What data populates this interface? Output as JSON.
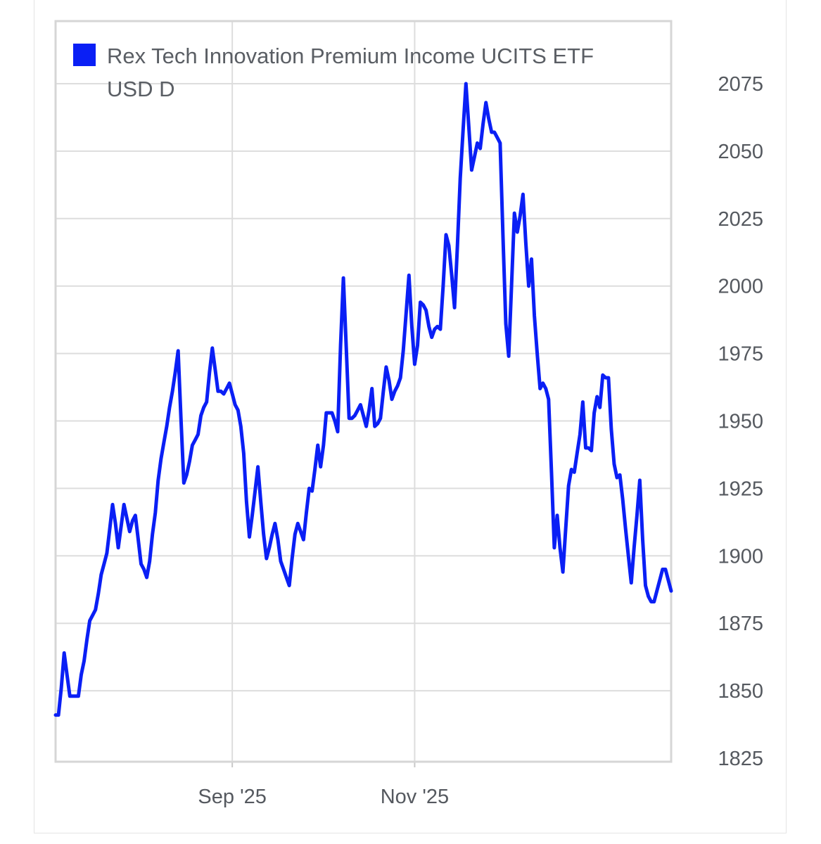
{
  "chart_data": {
    "type": "line",
    "title": "",
    "xlabel": "",
    "ylabel": "",
    "ylim": [
      1825,
      2075
    ],
    "y_ticks": [
      1825,
      1850,
      1875,
      1900,
      1925,
      1950,
      1975,
      2000,
      2025,
      2050,
      2075
    ],
    "x_ticks": [
      {
        "label": "Sep '25",
        "index": 62
      },
      {
        "label": "Nov '25",
        "index": 126
      }
    ],
    "grid": true,
    "legend_position": "top-left",
    "legend_lines": [
      "Rex Tech Innovation Premium Income UCITS ETF",
      "USD D"
    ],
    "series": [
      {
        "name": "Rex Tech Innovation Premium Income UCITS ETF USD D",
        "color": "#0a1ff5",
        "values": [
          1841,
          1841,
          1851,
          1864,
          1856,
          1848,
          1848,
          1848,
          1848,
          1856,
          1861,
          1869,
          1876,
          1878,
          1880,
          1886,
          1893,
          1897,
          1901,
          1910,
          1919,
          1912,
          1903,
          1911,
          1919,
          1914,
          1909,
          1913,
          1915,
          1906,
          1897,
          1895,
          1892,
          1898,
          1908,
          1916,
          1928,
          1936,
          1942,
          1948,
          1955,
          1961,
          1968,
          1976,
          1951,
          1927,
          1930,
          1935,
          1941,
          1943,
          1945,
          1952,
          1955,
          1957,
          1968,
          1977,
          1969,
          1961,
          1961,
          1960,
          1962,
          1964,
          1960,
          1956,
          1954,
          1948,
          1938,
          1920,
          1907,
          1915,
          1924,
          1933,
          1920,
          1908,
          1899,
          1903,
          1908,
          1912,
          1906,
          1898,
          1895,
          1892,
          1889,
          1899,
          1908,
          1912,
          1909,
          1906,
          1916,
          1925,
          1924,
          1932,
          1941,
          1933,
          1941,
          1953,
          1953,
          1953,
          1950,
          1946,
          1978,
          2003,
          1977,
          1951,
          1951,
          1952,
          1954,
          1956,
          1952,
          1948,
          1954,
          1962,
          1948,
          1949,
          1951,
          1961,
          1970,
          1965,
          1958,
          1961,
          1963,
          1966,
          1976,
          1990,
          2004,
          1985,
          1971,
          1978,
          1994,
          1993,
          1991,
          1985,
          1981,
          1984,
          1985,
          1984,
          2000,
          2019,
          2015,
          2004,
          1992,
          2015,
          2040,
          2058,
          2075,
          2059,
          2043,
          2048,
          2053,
          2051,
          2060,
          2068,
          2062,
          2057,
          2057,
          2055,
          2053,
          2018,
          1986,
          1974,
          2000,
          2027,
          2020,
          2026,
          2034,
          2016,
          2000,
          2010,
          1989,
          1975,
          1962,
          1964,
          1962,
          1958,
          1931,
          1903,
          1915,
          1903,
          1894,
          1910,
          1926,
          1932,
          1931,
          1938,
          1945,
          1957,
          1940,
          1940,
          1939,
          1953,
          1959,
          1955,
          1967,
          1966,
          1966,
          1947,
          1934,
          1929,
          1930,
          1921,
          1910,
          1900,
          1890,
          1903,
          1915,
          1928,
          1906,
          1889,
          1885,
          1883,
          1883,
          1887,
          1891,
          1895,
          1895,
          1891,
          1887
        ]
      }
    ]
  }
}
